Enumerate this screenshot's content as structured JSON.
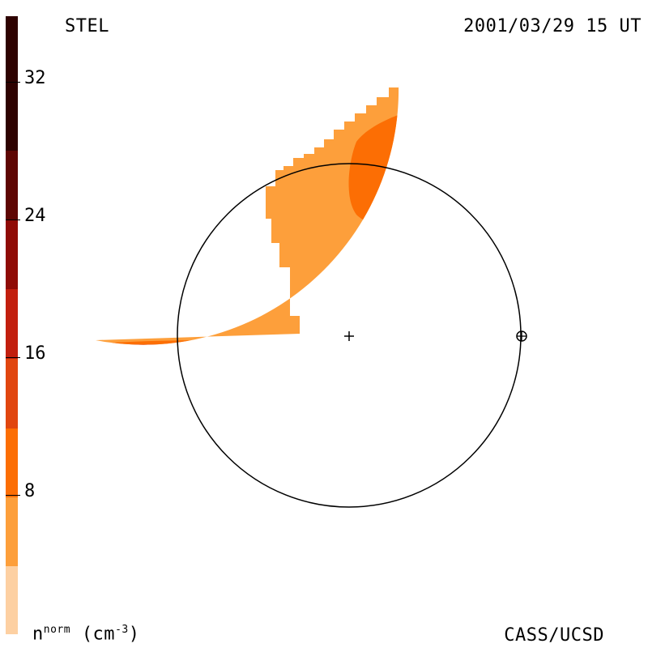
{
  "header": {
    "instrument": "STEL",
    "timestamp": "2001/03/29 15 UT"
  },
  "footer": {
    "units_main": "n",
    "units_sup": "norm",
    "units_paren": "(cm",
    "units_exp": "-3",
    "units_close": ")",
    "credit": "CASS/UCSD"
  },
  "colorbar": {
    "ticks": [
      "8",
      "16",
      "24",
      "32"
    ],
    "bands": [
      "#fdd0a2",
      "#fd9f3b",
      "#fc6e04",
      "#e1460f",
      "#c21f0e",
      "#8f0b06",
      "#5e0603",
      "#2e0201"
    ]
  },
  "colors": {
    "level_1": "#fdd0a2",
    "level_2": "#fd9f3b",
    "level_3": "#fc6e04",
    "level_4": "#e1460f",
    "level_5": "#b11708",
    "level_6": "#8f0b06",
    "reference_circle": "#000000"
  },
  "markers": {
    "sun_icon": "plus-in-circle",
    "earth_icon": "circled-plus"
  }
}
